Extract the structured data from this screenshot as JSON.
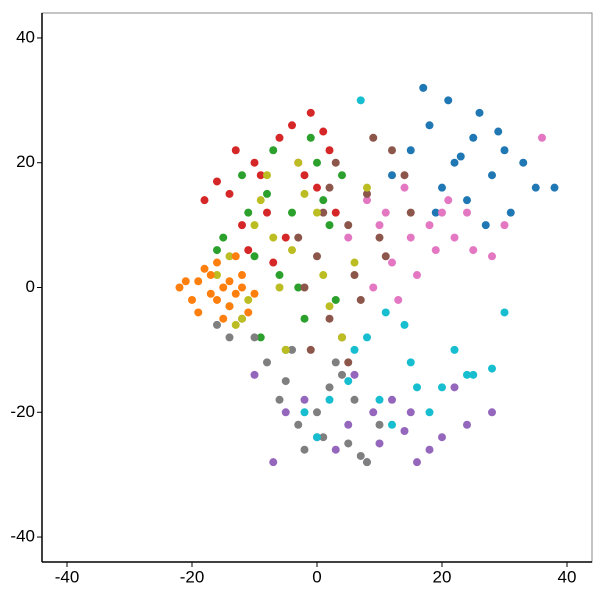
{
  "chart_data": {
    "type": "scatter",
    "xlim": [
      -44,
      44
    ],
    "ylim": [
      -44,
      44
    ],
    "xticks": [
      -40,
      -20,
      0,
      20,
      40
    ],
    "yticks": [
      -40,
      -20,
      0,
      20,
      40
    ],
    "series": [
      {
        "color": "#1f77b4",
        "x": [
          22,
          25,
          28,
          30,
          18,
          20,
          26,
          33,
          35,
          15,
          12,
          24,
          27,
          29,
          31,
          21,
          17,
          38,
          23,
          19
        ],
        "y": [
          20,
          24,
          18,
          22,
          26,
          16,
          28,
          20,
          16,
          22,
          18,
          14,
          10,
          25,
          12,
          30,
          32,
          16,
          21,
          12
        ]
      },
      {
        "color": "#2ca02c",
        "x": [
          -12,
          -8,
          -4,
          0,
          2,
          -15,
          -10,
          -6,
          -2,
          4,
          -14,
          -9,
          -5,
          1,
          -11,
          -7,
          -3,
          -16,
          3,
          -1
        ],
        "y": [
          18,
          15,
          12,
          20,
          10,
          8,
          5,
          2,
          -5,
          18,
          -3,
          -8,
          -10,
          14,
          12,
          22,
          0,
          6,
          -2,
          24
        ]
      },
      {
        "color": "#d62728",
        "x": [
          -10,
          -6,
          -2,
          2,
          -14,
          -8,
          -4,
          0,
          -12,
          -16,
          -5,
          -1,
          3,
          -9,
          -13,
          -3,
          -18,
          -7,
          1,
          -11
        ],
        "y": [
          20,
          24,
          18,
          22,
          15,
          12,
          26,
          16,
          10,
          17,
          8,
          28,
          12,
          18,
          22,
          20,
          14,
          4,
          25,
          6
        ]
      },
      {
        "color": "#9467bd",
        "x": [
          5,
          10,
          15,
          20,
          -2,
          8,
          12,
          18,
          24,
          3,
          -5,
          14,
          22,
          0,
          6,
          16,
          28,
          -10,
          -7,
          9
        ],
        "y": [
          -22,
          -25,
          -20,
          -24,
          -18,
          -28,
          -18,
          -26,
          -22,
          -26,
          -20,
          -23,
          -16,
          -24,
          -14,
          -28,
          -20,
          -14,
          -28,
          -20
        ]
      },
      {
        "color": "#7f7f7f",
        "x": [
          -5,
          0,
          5,
          -10,
          -3,
          2,
          8,
          -8,
          -2,
          3,
          10,
          -12,
          -6,
          6,
          1,
          -4,
          4,
          -14,
          -16,
          7
        ],
        "y": [
          -15,
          -20,
          -25,
          -8,
          -22,
          -16,
          -28,
          -12,
          -26,
          -12,
          -22,
          -5,
          -18,
          -18,
          -24,
          -10,
          -14,
          -8,
          -6,
          -27
        ]
      },
      {
        "color": "#17becf",
        "x": [
          5,
          10,
          15,
          20,
          25,
          8,
          12,
          18,
          2,
          22,
          0,
          14,
          28,
          6,
          16,
          7,
          24,
          -2,
          11,
          30
        ],
        "y": [
          -15,
          -18,
          -12,
          -16,
          -14,
          -8,
          -22,
          -20,
          -18,
          -10,
          -24,
          -6,
          -13,
          -10,
          -16,
          30,
          -14,
          -20,
          -4,
          -4
        ]
      },
      {
        "color": "#e377c2",
        "x": [
          10,
          15,
          20,
          25,
          8,
          12,
          18,
          22,
          14,
          28,
          5,
          16,
          24,
          11,
          19,
          30,
          9,
          36,
          13,
          21
        ],
        "y": [
          10,
          8,
          12,
          6,
          14,
          4,
          10,
          8,
          16,
          5,
          8,
          2,
          12,
          12,
          6,
          10,
          0,
          24,
          -2,
          14
        ]
      },
      {
        "color": "#8c564b",
        "x": [
          0,
          2,
          5,
          -2,
          8,
          3,
          10,
          4,
          1,
          12,
          -1,
          6,
          14,
          7,
          -3,
          9,
          2,
          11,
          5,
          15
        ],
        "y": [
          5,
          -5,
          10,
          0,
          15,
          20,
          8,
          -8,
          12,
          22,
          -10,
          2,
          18,
          -2,
          8,
          24,
          16,
          5,
          -12,
          12
        ]
      },
      {
        "color": "#bcbd22",
        "x": [
          -14,
          -10,
          -6,
          -2,
          2,
          -12,
          -8,
          -4,
          0,
          4,
          -16,
          -11,
          -7,
          -3,
          6,
          -9,
          -13,
          -5,
          1,
          8
        ],
        "y": [
          5,
          10,
          0,
          15,
          -3,
          -5,
          18,
          6,
          12,
          -8,
          2,
          -2,
          8,
          20,
          4,
          14,
          -6,
          -10,
          2,
          16
        ]
      },
      {
        "color": "#ff7f0e",
        "x": [
          -15,
          -17,
          -13,
          -19,
          -14,
          -16,
          -12,
          -20,
          -22,
          -18,
          -11,
          -15,
          -14,
          -17,
          -13,
          -21,
          -16,
          -12,
          -19,
          -10
        ],
        "y": [
          0,
          2,
          -1,
          1,
          -3,
          4,
          2,
          -2,
          0,
          3,
          -4,
          -5,
          1,
          -1,
          5,
          1,
          -2,
          0,
          -4,
          -1
        ]
      }
    ]
  }
}
